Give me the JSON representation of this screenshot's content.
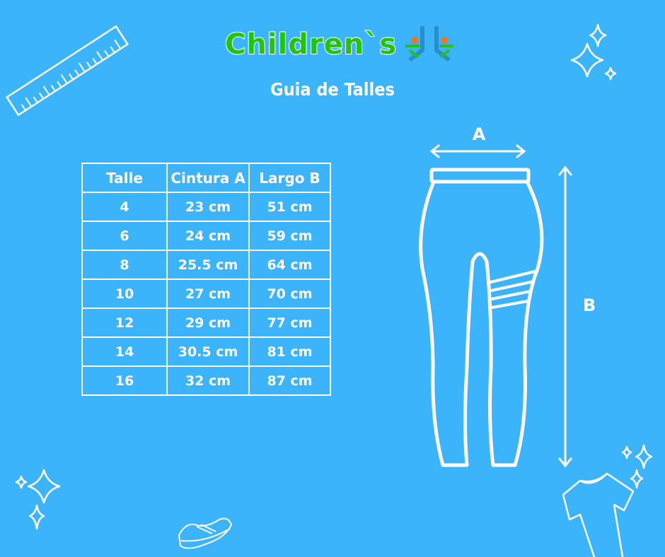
{
  "brand": {
    "name": "Children`s",
    "colors": {
      "text": "#22c414",
      "accent_orange": "#e87722",
      "accent_blue": "#2a8fc9"
    }
  },
  "title": "Guia de Talles",
  "table": {
    "headers": [
      "Talle",
      "Cintura A",
      "Largo B"
    ],
    "rows": [
      [
        "4",
        "23 cm",
        "51 cm"
      ],
      [
        "6",
        "24 cm",
        "59 cm"
      ],
      [
        "8",
        "25.5 cm",
        "64 cm"
      ],
      [
        "10",
        "27 cm",
        "70 cm"
      ],
      [
        "12",
        "29 cm",
        "77 cm"
      ],
      [
        "14",
        "30.5 cm",
        "81 cm"
      ],
      [
        "16",
        "32 cm",
        "87 cm"
      ]
    ]
  },
  "diagram": {
    "label_a": "A",
    "label_b": "B"
  },
  "background": "#3bb4fc"
}
